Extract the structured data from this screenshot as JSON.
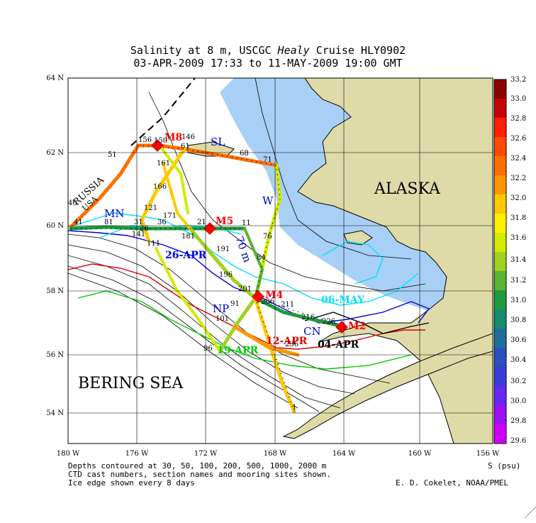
{
  "title": {
    "line1_a": "Salinity at 8 m, USCGC ",
    "line1_ship": "Healy",
    "line1_b": " Cruise HLY0902",
    "line2": "03-APR-2009 17:33 to 11-MAY-2009 19:00 GMT"
  },
  "lat_labels": [
    "64 N",
    "62 N",
    "60 N",
    "58 N",
    "56 N",
    "54 N"
  ],
  "lon_labels": [
    "180 W",
    "176 W",
    "172 W",
    "168 W",
    "164 W",
    "160 W",
    "156 W"
  ],
  "place_labels": {
    "alaska": "ALASKA",
    "bering_sea": "BERING SEA",
    "russia": "RUSSIA",
    "usa": "USA"
  },
  "section_names": {
    "sl": "SL",
    "mn": "MN",
    "w": "W",
    "np": "NP",
    "cn": "CN",
    "depth70": "70 m"
  },
  "mooring_sites": {
    "m8": "M8",
    "m5": "M5",
    "m4": "M4",
    "m2": "M2"
  },
  "ice_edge_dates": {
    "apr26": "26-APR",
    "may06": "06-MAY",
    "apr12": "12-APR",
    "apr04": "04-APR",
    "apr19": "19-APR"
  },
  "cast_numbers": [
    "156",
    "150",
    "146",
    "51",
    "61",
    "68",
    "71",
    "161",
    "166",
    "121",
    "171",
    "81",
    "21",
    "11",
    "41",
    "46",
    "31",
    "36",
    "141",
    "26",
    "111",
    "181",
    "191",
    "76",
    "84",
    "196",
    "201",
    "206",
    "211",
    "91",
    "101",
    "216",
    "226",
    "236",
    "96",
    "1"
  ],
  "colorbar": {
    "unit": "S (psu)",
    "ticks": [
      "33.2",
      "33.0",
      "32.8",
      "32.6",
      "32.4",
      "32.2",
      "32.0",
      "31.8",
      "31.6",
      "31.4",
      "31.2",
      "31.0",
      "30.8",
      "30.6",
      "30.4",
      "30.2",
      "30.0",
      "29.8",
      "29.6"
    ],
    "colors": [
      "#8b0000",
      "#c80000",
      "#ff1e00",
      "#ff4a00",
      "#ff6e00",
      "#ff9600",
      "#ffc800",
      "#fff000",
      "#d2eb00",
      "#a0d21e",
      "#5ab432",
      "#1e9b3c",
      "#148c6e",
      "#1e6e9b",
      "#2850be",
      "#3c3cdc",
      "#6428f0",
      "#a00ff0",
      "#d200fa"
    ]
  },
  "footer": {
    "line1": "Depths contoured at 30, 50, 100, 200, 500, 1000, 2000 m",
    "line2": "CTD cast numbers, section names and mooring sites shown.",
    "line3": "Ice edge shown every 8 days",
    "credit": "E. D. Cokelet, NOAA/PMEL"
  },
  "colors": {
    "land": "#dedba8",
    "ice_water": "#a8cff5",
    "ice_line_cyan": "#00e0ff",
    "ice_line_blue": "#0000dd",
    "ice_line_red": "#e00000",
    "ice_line_green": "#00cc00",
    "mooring": "#ff0000"
  }
}
